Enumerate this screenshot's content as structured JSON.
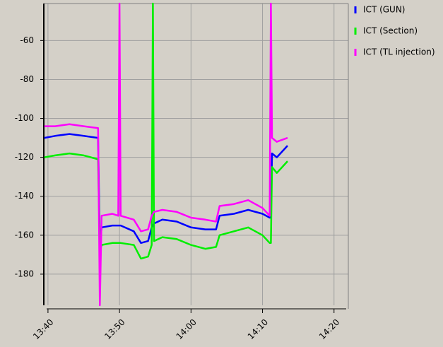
{
  "chart_data": {
    "type": "line",
    "x": [
      "13:39:30",
      "13:41:00",
      "13:43:00",
      "13:45:00",
      "13:47:00",
      "13:47:15",
      "13:47:30",
      "13:49:00",
      "13:49:50",
      "13:50:00",
      "13:50:10",
      "13:52:00",
      "13:53:00",
      "13:54:00",
      "13:54:30",
      "13:54:40",
      "13:54:50",
      "13:56:00",
      "13:58:00",
      "14:00:00",
      "14:02:00",
      "14:03:30",
      "14:04:00",
      "14:06:00",
      "14:08:00",
      "14:10:00",
      "14:11:00",
      "14:11:10",
      "14:11:20",
      "14:12:00",
      "14:13:30"
    ],
    "series": [
      {
        "name": "ICT (GUN)",
        "color": "#0000ff",
        "values": [
          -110,
          -109,
          -108,
          -109,
          -110,
          -165,
          -156,
          -155,
          -155,
          -155,
          -155,
          -158,
          -164,
          -163,
          -156,
          -155,
          -154,
          -152,
          -153,
          -156,
          -157,
          -157,
          -150,
          -149,
          -147,
          -149,
          -151,
          -151,
          -118,
          -120,
          -114
        ]
      },
      {
        "name": "ICT (Section)",
        "color": "#00ee00",
        "values": [
          -120,
          -119,
          -118,
          -119,
          -121,
          -168,
          -165,
          -164,
          -164,
          -164,
          -164,
          -165,
          -172,
          -171,
          -165,
          -41,
          -163,
          -161,
          -162,
          -165,
          -167,
          -166,
          -160,
          -158,
          -156,
          -160,
          -164,
          -164,
          -125,
          -128,
          -122
        ]
      },
      {
        "name": "ICT (TL injection)",
        "color": "#ff00ff",
        "values": [
          -104,
          -104,
          -103,
          -104,
          -105,
          -196,
          -150,
          -149,
          -150,
          -41,
          -150,
          -152,
          -158,
          -157,
          -150,
          -149,
          -148,
          -147,
          -148,
          -151,
          -152,
          -153,
          -145,
          -144,
          -142,
          -146,
          -150,
          -41,
          -110,
          -112,
          -110
        ]
      }
    ],
    "xlim": [
      "13:39:25",
      "14:22:00"
    ],
    "xticks": [
      "13:40",
      "13:50",
      "14:00",
      "14:10",
      "14:20"
    ],
    "ylim": [
      -196,
      -41
    ],
    "yticks": [
      -60,
      -80,
      -100,
      -120,
      -140,
      -160,
      -180
    ],
    "grid": true
  }
}
